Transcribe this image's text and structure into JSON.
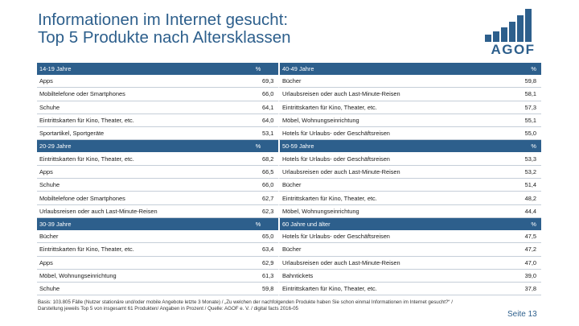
{
  "title": {
    "line1": "Informationen im Internet gesucht:",
    "line2": "Top 5 Produkte nach Altersklassen"
  },
  "logo": {
    "text": "AGOF",
    "bar_color": "#2d5f8c"
  },
  "colors": {
    "header_bg": "#2d5f8c",
    "accent": "#2d5f8c",
    "row_rule": "#c5ced8"
  },
  "percent_symbol": "%",
  "sections": [
    {
      "left": {
        "label": "14-19 Jahre",
        "rows": [
          {
            "product": "Apps",
            "value": "69,3"
          },
          {
            "product": "Mobiltelefone oder Smartphones",
            "value": "66,0"
          },
          {
            "product": "Schuhe",
            "value": "64,1"
          },
          {
            "product": "Eintrittskarten für Kino, Theater, etc.",
            "value": "64,0"
          },
          {
            "product": "Sportartikel, Sportgeräte",
            "value": "53,1"
          }
        ]
      },
      "right": {
        "label": "40-49 Jahre",
        "rows": [
          {
            "product": "Bücher",
            "value": "59,8"
          },
          {
            "product": "Urlaubsreisen oder auch Last-Minute-Reisen",
            "value": "58,1"
          },
          {
            "product": "Eintrittskarten für Kino, Theater, etc.",
            "value": "57,3"
          },
          {
            "product": "Möbel, Wohnungseinrichtung",
            "value": "55,1"
          },
          {
            "product": "Hotels für Urlaubs- oder Geschäftsreisen",
            "value": "55,0"
          }
        ]
      }
    },
    {
      "left": {
        "label": "20-29 Jahre",
        "rows": [
          {
            "product": "Eintrittskarten für Kino, Theater, etc.",
            "value": "68,2"
          },
          {
            "product": "Apps",
            "value": "66,5"
          },
          {
            "product": "Schuhe",
            "value": "66,0"
          },
          {
            "product": "Mobiltelefone oder Smartphones",
            "value": "62,7"
          },
          {
            "product": "Urlaubsreisen oder auch Last-Minute-Reisen",
            "value": "62,3"
          }
        ]
      },
      "right": {
        "label": "50-59 Jahre",
        "rows": [
          {
            "product": "Hotels für Urlaubs- oder Geschäftsreisen",
            "value": "53,3"
          },
          {
            "product": "Urlaubsreisen oder auch Last-Minute-Reisen",
            "value": "53,2"
          },
          {
            "product": "Bücher",
            "value": "51,4"
          },
          {
            "product": "Eintrittskarten für Kino, Theater, etc.",
            "value": "48,2"
          },
          {
            "product": "Möbel, Wohnungseinrichtung",
            "value": "44,4"
          }
        ]
      }
    },
    {
      "left": {
        "label": "30-39 Jahre",
        "rows": [
          {
            "product": "Bücher",
            "value": "65,0"
          },
          {
            "product": "Eintrittskarten für Kino, Theater, etc.",
            "value": "63,4"
          },
          {
            "product": "Apps",
            "value": "62,9"
          },
          {
            "product": "Möbel, Wohnungseinrichtung",
            "value": "61,3"
          },
          {
            "product": "Schuhe",
            "value": "59,8"
          }
        ]
      },
      "right": {
        "label": "60 Jahre und älter",
        "rows": [
          {
            "product": "Hotels für Urlaubs- oder Geschäftsreisen",
            "value": "47,5"
          },
          {
            "product": "Bücher",
            "value": "47,2"
          },
          {
            "product": "Urlaubsreisen oder auch Last-Minute-Reisen",
            "value": "47,0"
          },
          {
            "product": "Bahntickets",
            "value": "39,0"
          },
          {
            "product": "Eintrittskarten für Kino, Theater, etc.",
            "value": "37,8"
          }
        ]
      }
    }
  ],
  "footnote": "Basis: 103.805 Fälle (Nutzer stationäre und/oder mobile Angebote letzte 3 Monate) / „Zu welchen der nachfolgenden Produkte haben Sie schon einmal Informationen im Internet gesucht?“ / Darstellung jeweils Top 5 von insgesamt 61 Produkten/ Angaben in Prozent / Quelle: AGOF e. V. / digital facts 2016-05",
  "page": "Seite 13"
}
